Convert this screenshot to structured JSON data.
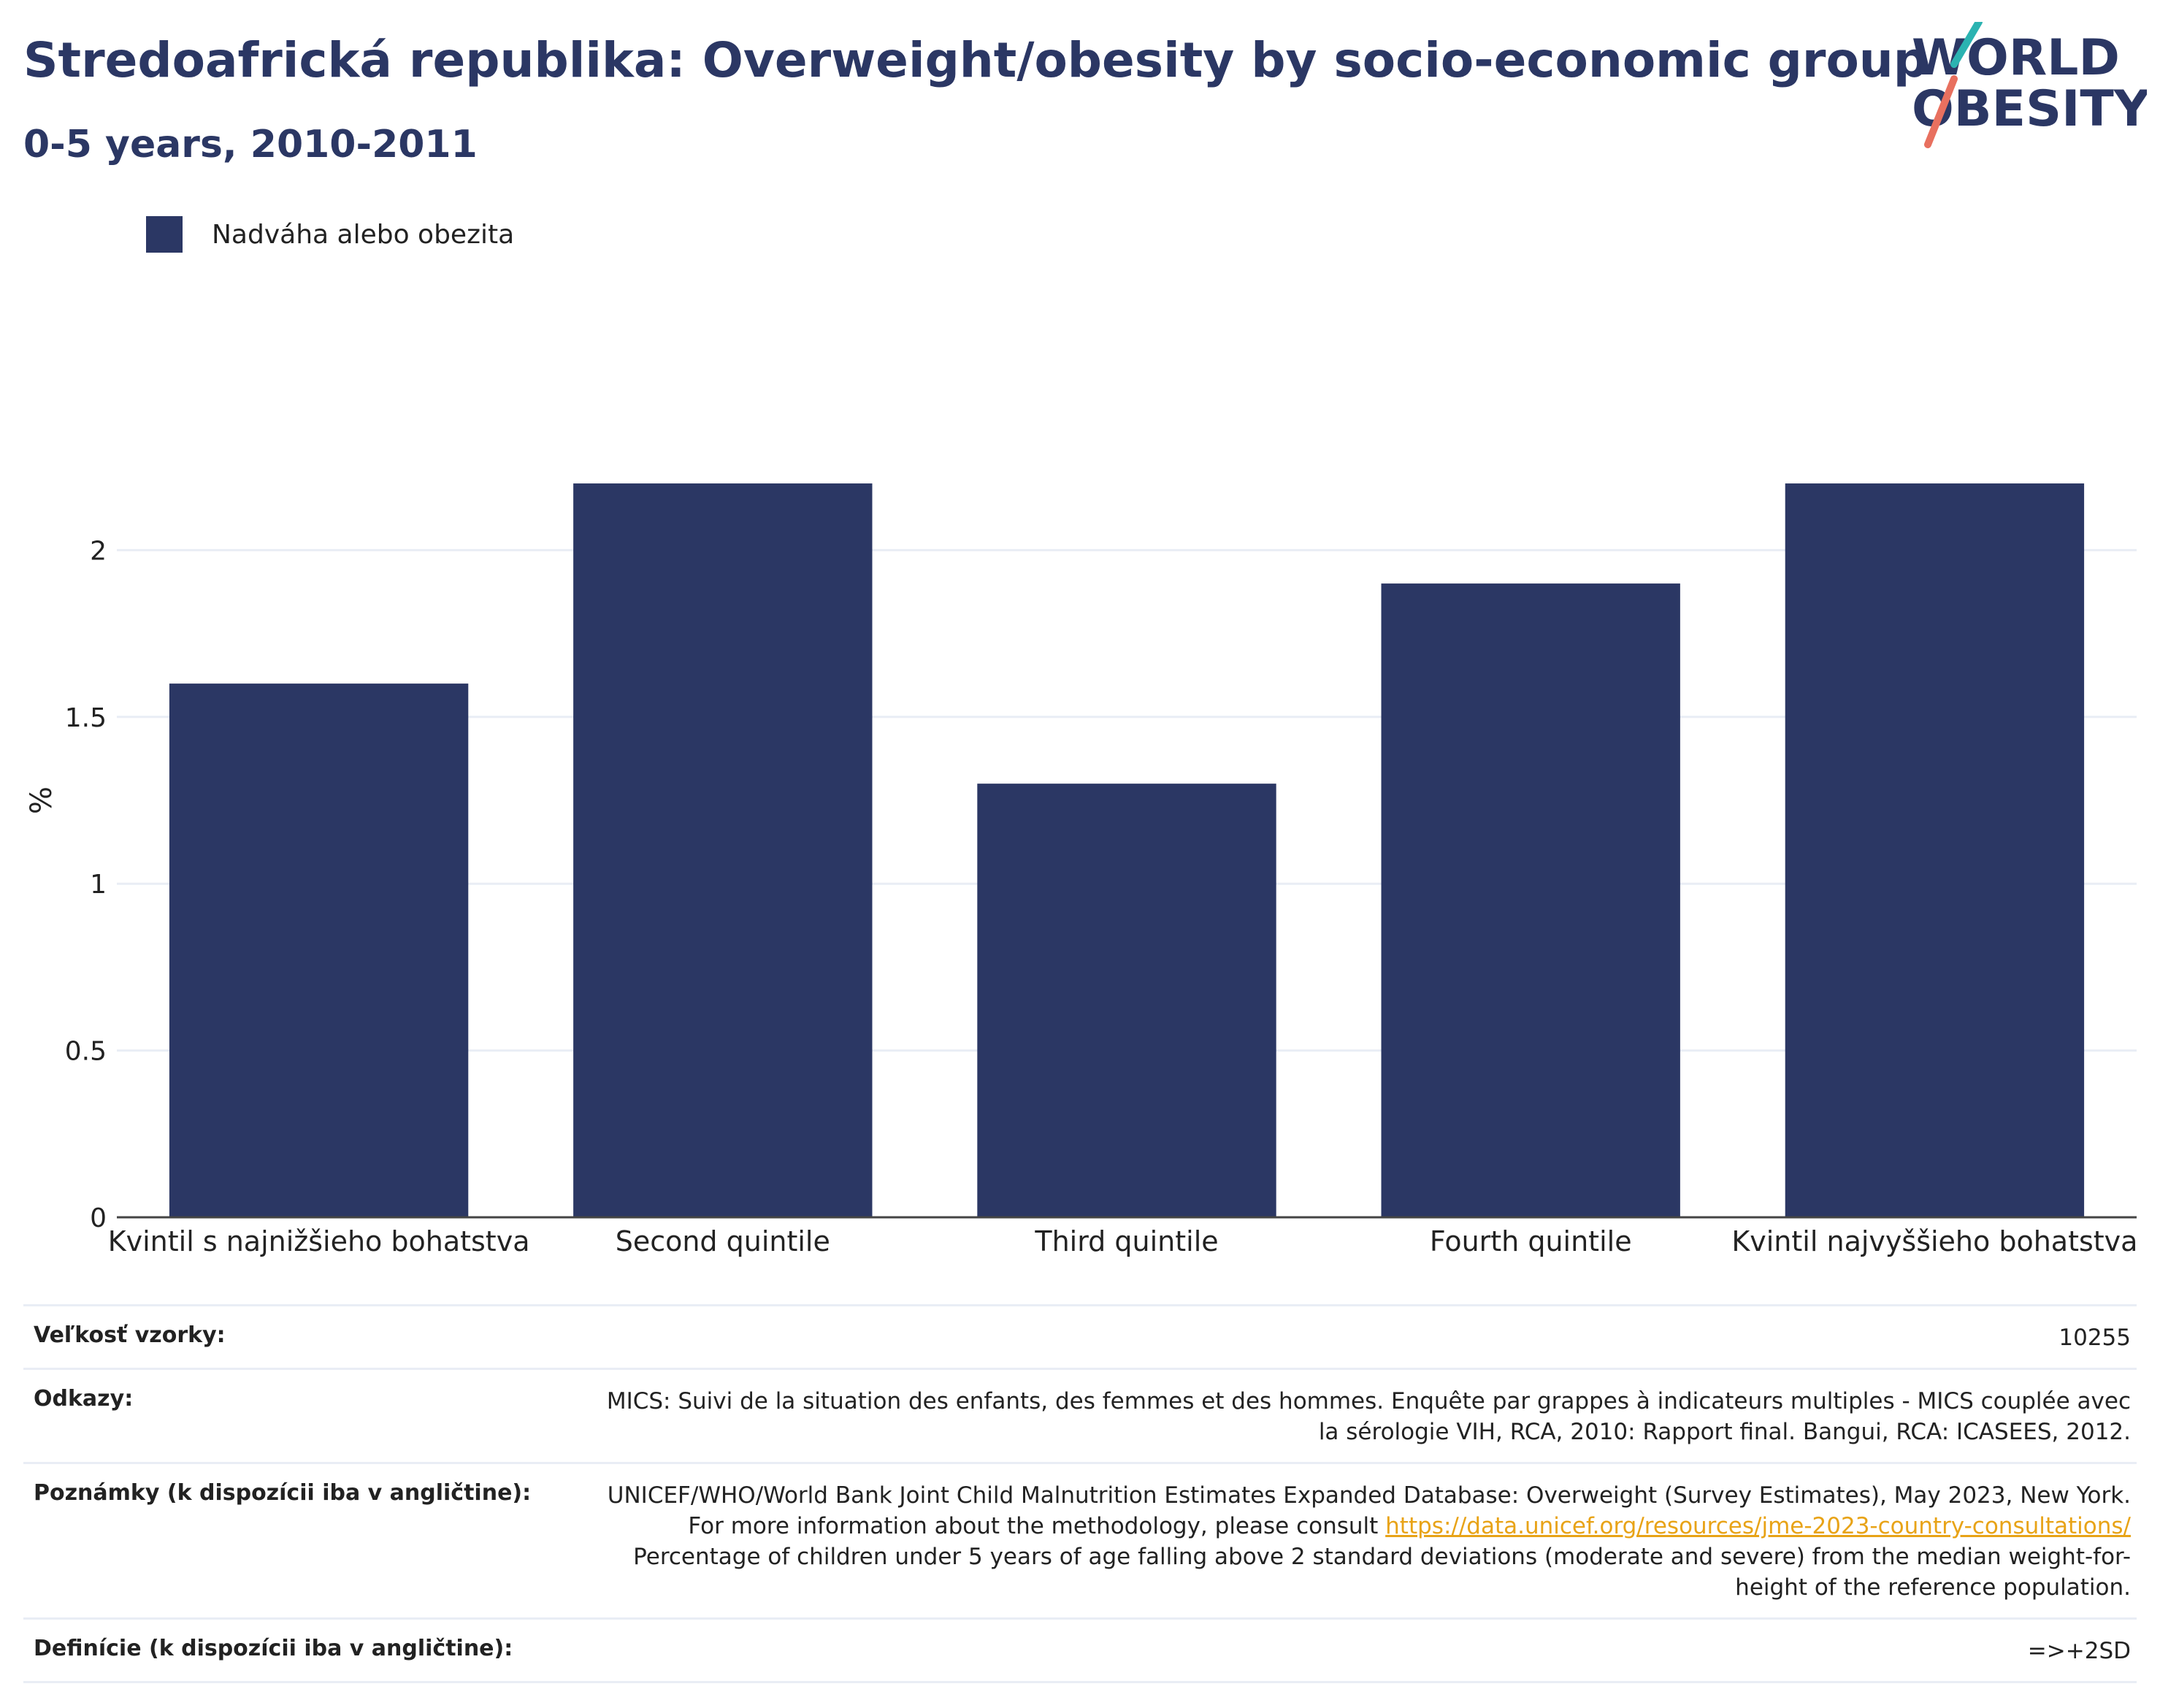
{
  "header": {
    "title": "Stredoafrická republika: Overweight/obesity by socio-economic group",
    "subtitle": "0-5 years, 2010-2011"
  },
  "logo": {
    "line1": "WORLD",
    "line2": "OBESITY",
    "colors": {
      "text": "#2b3764",
      "teal": "#2bb3b1",
      "coral": "#e8705f"
    }
  },
  "colors": {
    "bar": "#2b3764",
    "grid": "#e9edf5",
    "link": "#e8a317"
  },
  "chart_data": {
    "type": "bar",
    "categories": [
      "Kvintil s najnižšieho bohatstva",
      "Second quintile",
      "Third quintile",
      "Fourth quintile",
      "Kvintil najvyššieho bohatstva"
    ],
    "series": [
      {
        "name": "Nadváha alebo obezita",
        "values": [
          1.6,
          2.2,
          1.3,
          1.9,
          2.2
        ],
        "color": "#2b3764"
      }
    ],
    "ylabel": "%",
    "xlabel": "",
    "ylim": [
      0,
      2.5
    ],
    "yticks": [
      0,
      0.5,
      1,
      1.5,
      2
    ],
    "ytick_labels": [
      "0",
      "0.5",
      "1",
      "1.5",
      "2"
    ],
    "grid": true,
    "legend_position": "top-left"
  },
  "info": {
    "sample_size": {
      "label": "Veľkosť vzorky:",
      "value": "10255"
    },
    "references": {
      "label": "Odkazy:",
      "value": "MICS: Suivi de la situation des enfants, des femmes et des hommes. Enquête par grappes à indicateurs multiples - MICS couplée avec la sérologie VIH, RCA, 2010: Rapport final. Bangui, RCA: ICASEES, 2012."
    },
    "notes": {
      "label": "Poznámky (k dispozícii iba v angličtine):",
      "text_before": "UNICEF/WHO/World Bank Joint Child Malnutrition Estimates Expanded Database: Overweight (Survey Estimates), May 2023, New York. For more information about the methodology, please consult ",
      "link": "https://data.unicef.org/resources/jme-2023-country-consultations/",
      "text_after": " Percentage of children under 5 years of age falling above 2 standard deviations (moderate and severe) from the median weight-for-height of the reference population."
    },
    "definitions": {
      "label": "Definície (k dispozícii iba v angličtine):",
      "value": "=>+2SD"
    }
  }
}
